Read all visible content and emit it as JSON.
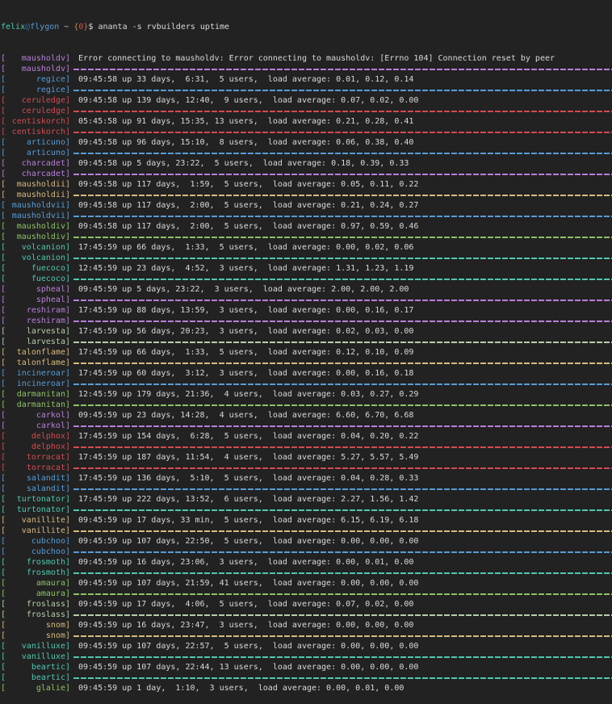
{
  "colors": {
    "bg": "#222222",
    "fg": "#d9d9d9",
    "purple": "#b97fd9",
    "blue": "#569cd6",
    "red": "#d44a52",
    "teal": "#4ec9b0",
    "green": "#8cc265",
    "lime": "#b5cea8",
    "gold": "#d7ba7d",
    "prompt_user": "#4ec9b0",
    "prompt_at": "#2d6bb0",
    "prompt_host": "#569cd6",
    "prompt_tilde": "#c8c8c8",
    "prompt_brace": "#c47e47",
    "prompt_jobnum": "#d94f4f",
    "prompt_dollar": "#d9d9d9"
  },
  "prompt": {
    "user": "felix",
    "at": "@",
    "host": "flygon",
    "tilde": " ~ ",
    "brace_open": "{",
    "job_number": "0",
    "brace_close": "}",
    "dollar": "$",
    "command": " ananta -s rvbuilders uptime"
  },
  "rows": [
    {
      "host": "mausholdv",
      "color": "purple",
      "error": true,
      "text": "Error connecting to mausholdv: Error connecting to mausholdv: [Errno 104] Connection reset by peer"
    },
    {
      "host": "regice",
      "color": "blue",
      "text": "09:45:58 up 33 days,  6:31,  5 users,  load average: 0.01, 0.12, 0.14"
    },
    {
      "host": "ceruledge",
      "color": "red",
      "text": "09:45:58 up 139 days, 12:40,  9 users,  load average: 0.07, 0.02, 0.00"
    },
    {
      "host": "centiskorch",
      "color": "red",
      "text": "05:45:58 up 91 days, 15:35, 13 users,  load average: 0.21, 0.28, 0.41"
    },
    {
      "host": "articuno",
      "color": "blue",
      "text": "09:45:58 up 96 days, 15:10,  8 users,  load average: 0.06, 0.38, 0.40"
    },
    {
      "host": "charcadet",
      "color": "purple",
      "text": "09:45:58 up 5 days, 23:22,  5 users,  load average: 0.18, 0.39, 0.33"
    },
    {
      "host": "mausholdii",
      "color": "gold",
      "text": "09:45:58 up 117 days,  1:59,  5 users,  load average: 0.05, 0.11, 0.22"
    },
    {
      "host": "mausholdvii",
      "color": "blue",
      "text": "09:45:58 up 117 days,  2:00,  5 users,  load average: 0.21, 0.24, 0.27"
    },
    {
      "host": "mausholdiv",
      "color": "green",
      "text": "09:45:58 up 117 days,  2:00,  5 users,  load average: 0.97, 0.59, 0.46"
    },
    {
      "host": "volcanion",
      "color": "teal",
      "text": "17:45:59 up 66 days,  1:33,  5 users,  load average: 0.00, 0.02, 0.06"
    },
    {
      "host": "fuecoco",
      "color": "teal",
      "text": "12:45:59 up 23 days,  4:52,  3 users,  load average: 1.31, 1.23, 1.19"
    },
    {
      "host": "spheal",
      "color": "purple",
      "text": "09:45:59 up 5 days, 23:22,  3 users,  load average: 2.00, 2.00, 2.00"
    },
    {
      "host": "reshiram",
      "color": "purple",
      "text": "17:45:59 up 88 days, 13:59,  3 users,  load average: 0.00, 0.16, 0.17"
    },
    {
      "host": "larvesta",
      "color": "lime",
      "text": "17:45:59 up 56 days, 20:23,  3 users,  load average: 0.02, 0.03, 0.00"
    },
    {
      "host": "talonflame",
      "color": "gold",
      "text": "17:45:59 up 66 days,  1:33,  5 users,  load average: 0.12, 0.10, 0.09"
    },
    {
      "host": "incineroar",
      "color": "blue",
      "text": "17:45:59 up 60 days,  3:12,  3 users,  load average: 0.00, 0.16, 0.18"
    },
    {
      "host": "darmanitan",
      "color": "green",
      "text": "12:45:59 up 179 days, 21:36,  4 users,  load average: 0.03, 0.27, 0.29"
    },
    {
      "host": "carkol",
      "color": "purple",
      "text": "09:45:59 up 23 days, 14:28,  4 users,  load average: 6.60, 6.70, 6.68"
    },
    {
      "host": "delphox",
      "color": "red",
      "text": "17:45:59 up 154 days,  6:28,  5 users,  load average: 0.04, 0.20, 0.22"
    },
    {
      "host": "torracat",
      "color": "red",
      "text": "17:45:59 up 187 days, 11:54,  4 users,  load average: 5.27, 5.57, 5.49"
    },
    {
      "host": "salandit",
      "color": "blue",
      "text": "17:45:59 up 136 days,  5:10,  5 users,  load average: 0.04, 0.28, 0.33"
    },
    {
      "host": "turtonator",
      "color": "teal",
      "text": "17:45:59 up 222 days, 13:52,  6 users,  load average: 2.27, 1.56, 1.42"
    },
    {
      "host": "vanillite",
      "color": "gold",
      "text": "09:45:59 up 17 days, 33 min,  5 users,  load average: 6.15, 6.19, 6.18"
    },
    {
      "host": "cubchoo",
      "color": "blue",
      "text": "09:45:59 up 107 days, 22:50,  5 users,  load average: 0.00, 0.00, 0.00"
    },
    {
      "host": "frosmoth",
      "color": "teal",
      "text": "09:45:59 up 16 days, 23:06,  3 users,  load average: 0.00, 0.01, 0.00"
    },
    {
      "host": "amaura",
      "color": "green",
      "text": "09:45:59 up 107 days, 21:59, 41 users,  load average: 0.00, 0.00, 0.00"
    },
    {
      "host": "froslass",
      "color": "lime",
      "text": "09:45:59 up 17 days,  4:06,  5 users,  load average: 0.07, 0.02, 0.00"
    },
    {
      "host": "snom",
      "color": "gold",
      "text": "09:45:59 up 16 days, 23:47,  3 users,  load average: 0.00, 0.00, 0.00"
    },
    {
      "host": "vanilluxe",
      "color": "teal",
      "text": "09:45:59 up 107 days, 22:57,  5 users,  load average: 0.00, 0.00, 0.00"
    },
    {
      "host": "beartic",
      "color": "teal",
      "text": "09:45:59 up 107 days, 22:44, 13 users,  load average: 0.00, 0.00, 0.00"
    },
    {
      "host": "glalie",
      "color": "green",
      "partial": true,
      "text": "09:45:59 up 1 day,  1:10,  3 users,  load average: 0.00, 0.01, 0.00"
    }
  ]
}
